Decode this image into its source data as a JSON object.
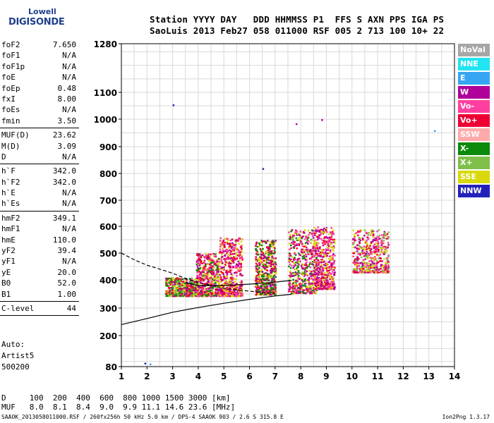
{
  "logo": {
    "line1": "Lowell",
    "line2": "DIGISONDE"
  },
  "header": {
    "line1": "Station YYYY DAY   DDD HHMMSS P1  FFS S AXN PPS IGA PS",
    "line2": "SaoLuis 2013 Feb27 058 011000 RSF 005 2 713 100 10+ 22"
  },
  "params": {
    "group1": [
      {
        "label": "foF2",
        "value": "7.650"
      },
      {
        "label": "foF1",
        "value": "N/A"
      },
      {
        "label": "foF1p",
        "value": "N/A"
      },
      {
        "label": "foE",
        "value": "N/A"
      },
      {
        "label": "foEp",
        "value": "0.48"
      },
      {
        "label": "fxI",
        "value": "8.00"
      },
      {
        "label": "foEs",
        "value": "N/A"
      },
      {
        "label": "fmin",
        "value": "3.50"
      }
    ],
    "group2": [
      {
        "label": "MUF(D)",
        "value": "23.62"
      },
      {
        "label": "M(D)",
        "value": "3.09"
      },
      {
        "label": "D",
        "value": "N/A"
      }
    ],
    "group3": [
      {
        "label": "h`F",
        "value": "342.0"
      },
      {
        "label": "h`F2",
        "value": "342.0"
      },
      {
        "label": "h`E",
        "value": "N/A"
      },
      {
        "label": "h`Es",
        "value": "N/A"
      }
    ],
    "group4": [
      {
        "label": "hmF2",
        "value": "349.1"
      },
      {
        "label": "hmF1",
        "value": "N/A"
      },
      {
        "label": "hmE",
        "value": "110.0"
      },
      {
        "label": "yF2",
        "value": "39.4"
      },
      {
        "label": "yF1",
        "value": "N/A"
      },
      {
        "label": "yE",
        "value": "20.0"
      },
      {
        "label": "B0",
        "value": "52.0"
      },
      {
        "label": "B1",
        "value": "1.00"
      }
    ],
    "group5": [
      {
        "label": "C-level",
        "value": "44"
      }
    ]
  },
  "auto": {
    "line1": "Auto:",
    "line2": "Artist5",
    "line3": "500200"
  },
  "legend": [
    {
      "label": "NoVal",
      "color": "#a6a6a6"
    },
    {
      "label": "NNE",
      "color": "#22e4f2"
    },
    {
      "label": "E",
      "color": "#36a6f4"
    },
    {
      "label": "W",
      "color": "#b0009a"
    },
    {
      "label": "Vo-",
      "color": "#ff3fa0"
    },
    {
      "label": "Vo+",
      "color": "#ee0035"
    },
    {
      "label": "SSW",
      "color": "#ffaaaa"
    },
    {
      "label": "X-",
      "color": "#0b8a0b"
    },
    {
      "label": "X+",
      "color": "#7fbf4a"
    },
    {
      "label": "SSE",
      "color": "#d8d80a"
    },
    {
      "label": "NNW",
      "color": "#2222bb"
    }
  ],
  "footer": {
    "d_line": "D     100  200  400  600  800 1000 1500 3000 [km]",
    "muf_line": "MUF   8.0  8.1  8.4  9.0  9.9 11.1 14.6 23.6 [MHz]",
    "file_line": "SAAOK_2013058011000.RSF / 260fx256h 50 kHz 5.0 km / DPS-4 SAAOK 903 / 2.6 S 315.8 E",
    "version": "Ion2Png 1.3.17"
  },
  "chart_data": {
    "type": "scatter",
    "x_range": [
      1,
      14
    ],
    "y_range": [
      80,
      1280
    ],
    "x_ticks": [
      "1",
      "2",
      "3",
      "4",
      "5",
      "6",
      "7",
      "8",
      "9",
      "10",
      "11",
      "12",
      "13",
      "14"
    ],
    "y_ticks": [
      "80",
      "200",
      "300",
      "400",
      "500",
      "600",
      "700",
      "800",
      "900",
      "1000",
      "1100",
      "1280"
    ],
    "grid": true,
    "y_scale": "nonlinear (expanded near 80 km, compressed above 1100 km)",
    "traces": [
      {
        "name": "profile",
        "style": "solid",
        "points": [
          [
            1.0,
            240
          ],
          [
            2.0,
            262
          ],
          [
            3.0,
            285
          ],
          [
            4.0,
            302
          ],
          [
            5.0,
            317
          ],
          [
            6.0,
            331
          ],
          [
            7.0,
            343
          ],
          [
            7.65,
            349
          ]
        ]
      },
      {
        "name": "trace",
        "style": "solid",
        "points": [
          [
            3.5,
            390
          ],
          [
            4.0,
            380
          ],
          [
            5.0,
            380
          ],
          [
            6.0,
            385
          ],
          [
            6.8,
            390
          ],
          [
            7.3,
            395
          ],
          [
            7.65,
            398
          ]
        ]
      },
      {
        "name": "model",
        "style": "dashed",
        "points": [
          [
            1.0,
            500
          ],
          [
            1.5,
            475
          ],
          [
            2.0,
            455
          ],
          [
            2.5,
            440
          ],
          [
            3.0,
            425
          ],
          [
            3.5,
            405
          ],
          [
            4.0,
            390
          ],
          [
            5.0,
            370
          ],
          [
            6.0,
            360
          ],
          [
            6.5,
            355
          ],
          [
            7.0,
            352
          ]
        ]
      }
    ],
    "clusters": [
      {
        "x": [
          2.7,
          3.9
        ],
        "y": [
          345,
          410
        ],
        "colors": [
          "#0b8a0b",
          "#d8d80a",
          "#b0009a",
          "#7fbf4a",
          "#ee0035"
        ]
      },
      {
        "x": [
          3.9,
          4.8
        ],
        "y": [
          345,
          500
        ],
        "colors": [
          "#ee0035",
          "#b0009a",
          "#0b8a0b",
          "#d8d80a",
          "#ff3fa0"
        ]
      },
      {
        "x": [
          4.8,
          5.7
        ],
        "y": [
          345,
          560
        ],
        "colors": [
          "#d8d80a",
          "#ee0035",
          "#b0009a",
          "#ff3fa0"
        ]
      },
      {
        "x": [
          6.2,
          7.0
        ],
        "y": [
          350,
          550
        ],
        "colors": [
          "#d8d80a",
          "#b0009a",
          "#ee0035",
          "#0b8a0b"
        ]
      },
      {
        "x": [
          7.5,
          8.6
        ],
        "y": [
          355,
          590
        ],
        "colors": [
          "#b0009a",
          "#d8d80a",
          "#ff3fa0",
          "#ee0035",
          "#0b8a0b"
        ]
      },
      {
        "x": [
          8.5,
          9.3
        ],
        "y": [
          370,
          600
        ],
        "colors": [
          "#d8d80a",
          "#b0009a",
          "#ff3fa0",
          "#ee0035"
        ]
      },
      {
        "x": [
          10.0,
          11.4
        ],
        "y": [
          430,
          590
        ],
        "colors": [
          "#ee0035",
          "#b0009a",
          "#ff3fa0",
          "#7fbf4a",
          "#d8d80a"
        ]
      }
    ],
    "isolated_points": [
      {
        "x": 3.0,
        "y": 1055,
        "color": "#2222bb"
      },
      {
        "x": 7.8,
        "y": 985,
        "color": "#b0009a"
      },
      {
        "x": 8.8,
        "y": 1000,
        "color": "#b0009a"
      },
      {
        "x": 13.2,
        "y": 960,
        "color": "#36a6f4"
      },
      {
        "x": 6.5,
        "y": 820,
        "color": "#2222bb"
      },
      {
        "x": 1.9,
        "y": 95,
        "color": "#2222bb"
      },
      {
        "x": 2.1,
        "y": 92,
        "color": "#36a6f4"
      }
    ]
  }
}
